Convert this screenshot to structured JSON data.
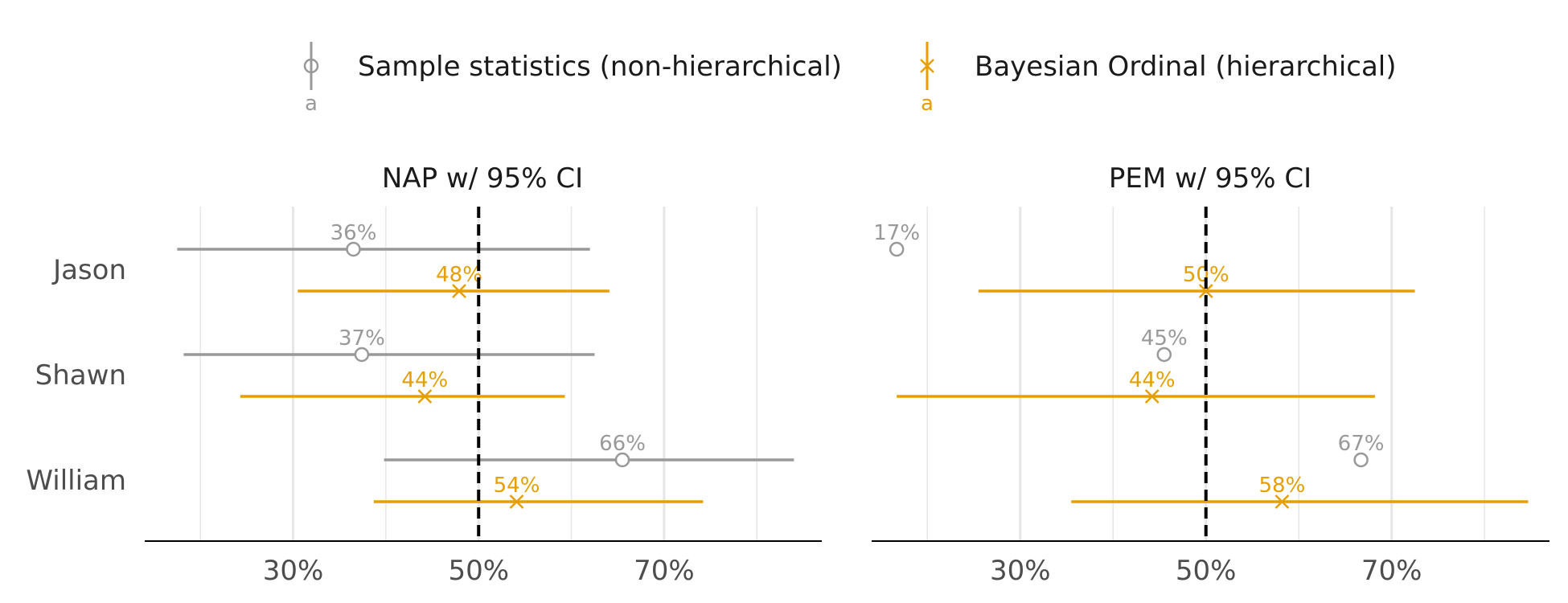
{
  "legend": {
    "items": [
      {
        "label": "Sample statistics (non-hierarchical)",
        "key_letter": "a",
        "color": "#999999",
        "marker": "circle"
      },
      {
        "label": "Bayesian Ordinal (hierarchical)",
        "key_letter": "a",
        "color": "#E69F00",
        "marker": "x"
      }
    ]
  },
  "colors": {
    "sample": "#999999",
    "bayes": "#E69F00",
    "reference_line": "#000000",
    "grid": "#e6e6e6",
    "axis": "#000000"
  },
  "chart_data": [
    {
      "type": "forest",
      "title": "NAP w/ 95% CI",
      "categories": [
        "Jason",
        "Shawn",
        "William"
      ],
      "xlim": [
        0.14,
        0.87
      ],
      "xticks": [
        0.3,
        0.5,
        0.7
      ],
      "xtick_labels": [
        "30%",
        "50%",
        "70%"
      ],
      "minor_gridlines": [
        0.2,
        0.4,
        0.6,
        0.8
      ],
      "reference_line": 0.5,
      "series": [
        {
          "name": "Sample statistics (non-hierarchical)",
          "values": [
            0.365,
            0.374,
            0.655
          ],
          "lower": [
            0.175,
            0.182,
            0.398
          ],
          "upper": [
            0.62,
            0.625,
            0.84
          ],
          "labels": [
            "36%",
            "37%",
            "66%"
          ]
        },
        {
          "name": "Bayesian Ordinal (hierarchical)",
          "values": [
            0.479,
            0.442,
            0.541
          ],
          "lower": [
            0.305,
            0.243,
            0.387
          ],
          "upper": [
            0.641,
            0.593,
            0.742
          ],
          "labels": [
            "48%",
            "44%",
            "54%"
          ]
        }
      ],
      "grid": true
    },
    {
      "type": "forest",
      "title": "PEM w/ 95% CI",
      "categories": [
        "Jason",
        "Shawn",
        "William"
      ],
      "xlim": [
        0.14,
        0.87
      ],
      "xticks": [
        0.3,
        0.5,
        0.7
      ],
      "xtick_labels": [
        "30%",
        "50%",
        "70%"
      ],
      "minor_gridlines": [
        0.2,
        0.4,
        0.6,
        0.8
      ],
      "reference_line": 0.5,
      "series": [
        {
          "name": "Sample statistics (non-hierarchical)",
          "values": [
            0.167,
            0.455,
            0.667
          ],
          "lower": [
            null,
            null,
            null
          ],
          "upper": [
            null,
            null,
            null
          ],
          "labels": [
            "17%",
            "45%",
            "67%"
          ]
        },
        {
          "name": "Bayesian Ordinal (hierarchical)",
          "values": [
            0.5,
            0.442,
            0.582
          ],
          "lower": [
            0.255,
            0.167,
            0.355
          ],
          "upper": [
            0.725,
            0.682,
            0.847
          ],
          "labels": [
            "50%",
            "44%",
            "58%"
          ]
        }
      ],
      "grid": true
    }
  ]
}
